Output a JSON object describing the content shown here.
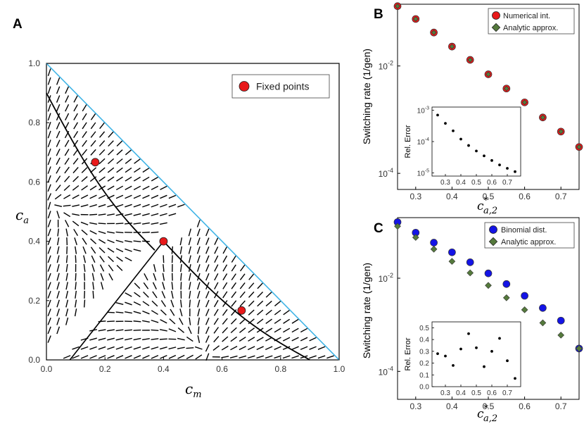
{
  "colors": {
    "fixed_point": "#e8191a",
    "numerical": "#e8191a",
    "binomial": "#1414e6",
    "analytic": "#557a3c",
    "boundary": "#3fb4e6"
  },
  "chart_data": [
    {
      "id": "A",
      "type": "scatter",
      "panel_label": "A",
      "xlabel_main": "c",
      "xlabel_sub": "m",
      "ylabel_main": "c",
      "ylabel_sub": "a",
      "xlim": [
        0,
        1
      ],
      "ylim": [
        0,
        1
      ],
      "xticks": [
        "0.0",
        "0.2",
        "0.4",
        "0.6",
        "0.8",
        "1.0"
      ],
      "yticks": [
        "0.0",
        "0.2",
        "0.4",
        "0.6",
        "0.8",
        "1.0"
      ],
      "legend": [
        "Fixed points"
      ],
      "fixed_points": [
        {
          "x": 0.1667,
          "y": 0.6667
        },
        {
          "x": 0.4,
          "y": 0.4
        },
        {
          "x": 0.6667,
          "y": 0.1667
        }
      ]
    },
    {
      "id": "B",
      "type": "scatter",
      "panel_label": "B",
      "ylabel": "Switching rate (1/gen)",
      "xlabel_main": "c",
      "xlabel_sub": "a,2",
      "xlabel_sup": "*",
      "yscale": "log",
      "xlim": [
        0.25,
        0.75
      ],
      "ylim_log10": [
        -4.3,
        -0.85
      ],
      "xticks": [
        "0.3",
        "0.4",
        "0.5",
        "0.6",
        "0.7"
      ],
      "yticks": [
        {
          "mantissa": "10",
          "exp": "-2"
        },
        {
          "mantissa": "10",
          "exp": "-4"
        }
      ],
      "x": [
        0.25,
        0.3,
        0.35,
        0.4,
        0.45,
        0.5,
        0.55,
        0.6,
        0.65,
        0.7,
        0.75
      ],
      "series": [
        {
          "name": "Numerical int.",
          "values": [
            0.13,
            0.075,
            0.042,
            0.023,
            0.013,
            0.007,
            0.0038,
            0.0021,
            0.0011,
            0.0006,
            0.00031
          ]
        },
        {
          "name": "Analytic approx.",
          "values": [
            0.13,
            0.075,
            0.042,
            0.023,
            0.013,
            0.007,
            0.0038,
            0.0021,
            0.0011,
            0.0006,
            0.00031
          ]
        }
      ],
      "inset": {
        "type": "scatter",
        "ylabel": "Rel. Error",
        "yscale": "log",
        "xlim": [
          0.25,
          0.75
        ],
        "xticks": [
          "0.3",
          "0.4",
          "0.5",
          "0.6",
          "0.7"
        ],
        "yticks": [
          {
            "mantissa": "10",
            "exp": "-3"
          },
          {
            "mantissa": "10",
            "exp": "-4"
          },
          {
            "mantissa": "10",
            "exp": "-5"
          }
        ],
        "x": [
          0.25,
          0.3,
          0.35,
          0.4,
          0.45,
          0.5,
          0.55,
          0.6,
          0.65,
          0.7,
          0.75
        ],
        "values": [
          0.0007,
          0.00038,
          0.00022,
          0.00012,
          7.5e-05,
          5e-05,
          3.5e-05,
          2.5e-05,
          1.8e-05,
          1.4e-05,
          1.1e-05
        ]
      }
    },
    {
      "id": "C",
      "type": "scatter",
      "panel_label": "C",
      "ylabel": "Switching rate (1/gen)",
      "xlabel_main": "c",
      "xlabel_sub": "a,2",
      "xlabel_sup": "*",
      "yscale": "log",
      "xlim": [
        0.25,
        0.75
      ],
      "ylim_log10": [
        -4.6,
        -0.7
      ],
      "xticks": [
        "0.3",
        "0.4",
        "0.5",
        "0.6",
        "0.7"
      ],
      "yticks": [
        {
          "mantissa": "10",
          "exp": "-2"
        },
        {
          "mantissa": "10",
          "exp": "-4"
        }
      ],
      "x": [
        0.25,
        0.3,
        0.35,
        0.4,
        0.45,
        0.5,
        0.55,
        0.6,
        0.65,
        0.7,
        0.75
      ],
      "series": [
        {
          "name": "Binomial dist.",
          "values": [
            0.16,
            0.095,
            0.058,
            0.036,
            0.022,
            0.0127,
            0.0075,
            0.0042,
            0.0023,
            0.00123,
            0.00031
          ]
        },
        {
          "name": "Analytic approx.",
          "values": [
            0.13,
            0.075,
            0.042,
            0.023,
            0.013,
            0.007,
            0.0038,
            0.0021,
            0.0011,
            0.0006,
            0.00031
          ]
        }
      ],
      "inset": {
        "type": "scatter",
        "ylabel": "Rel. Error",
        "xlim": [
          0.25,
          0.75
        ],
        "ylim": [
          0,
          0.55
        ],
        "xticks": [
          "0.3",
          "0.4",
          "0.5",
          "0.6",
          "0.7"
        ],
        "yticks": [
          "0.5",
          "0.4",
          "0.3",
          "0.2",
          "0.1",
          "0.0"
        ],
        "x": [
          0.25,
          0.3,
          0.35,
          0.4,
          0.45,
          0.5,
          0.55,
          0.6,
          0.65,
          0.7,
          0.75
        ],
        "values": [
          0.28,
          0.26,
          0.18,
          0.32,
          0.45,
          0.33,
          0.17,
          0.3,
          0.41,
          0.22,
          0.07
        ]
      }
    }
  ]
}
